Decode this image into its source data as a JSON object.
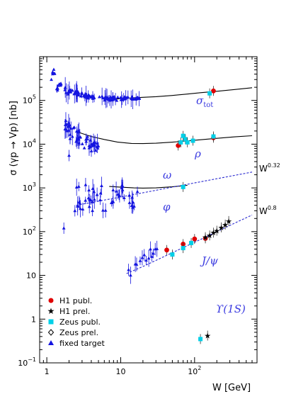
{
  "chart_data": {
    "type": "scatter",
    "ylabel": "σ (γp → Vp)  [nb]",
    "xlabel": "W  [GeV]",
    "x_scale": "log",
    "y_scale": "log",
    "xlim": [
      0.8,
      700
    ],
    "ylim": [
      0.1,
      1000000
    ],
    "x_ticks": [
      {
        "value": 1,
        "label": "1"
      },
      {
        "value": 10,
        "label": "10"
      },
      {
        "value": 100,
        "label": "10",
        "sup": "2"
      }
    ],
    "y_ticks": [
      {
        "value": 0.1,
        "label": "10",
        "sup": "−1"
      },
      {
        "value": 1,
        "label": "1"
      },
      {
        "value": 10,
        "label": "10"
      },
      {
        "value": 100,
        "label": "10",
        "sup": "2"
      },
      {
        "value": 1000,
        "label": "10",
        "sup": "3"
      },
      {
        "value": 10000,
        "label": "10",
        "sup": "4"
      },
      {
        "value": 100000,
        "label": "10",
        "sup": "5"
      }
    ],
    "curves": [
      {
        "name": "σ_tot",
        "style": "solid",
        "x": [
          7,
          10,
          15,
          20,
          30,
          50,
          80,
          120,
          200,
          350,
          600
        ],
        "y": [
          105000,
          110000,
          115000,
          118000,
          122000,
          130000,
          140000,
          150000,
          162000,
          178000,
          195000
        ]
      },
      {
        "name": "ρ",
        "style": "solid",
        "x": [
          2.5,
          3,
          4,
          6,
          9,
          14,
          20,
          30,
          50,
          80,
          120,
          200,
          350,
          600
        ],
        "y": [
          19500,
          17500,
          15000,
          12800,
          11200,
          10400,
          10300,
          10500,
          11100,
          11900,
          12600,
          13600,
          14700,
          15600
        ]
      },
      {
        "name": "ω",
        "style": "solid",
        "x": [
          7,
          10,
          15,
          20,
          30,
          50,
          80
        ],
        "y": [
          1080,
          1040,
          1000,
          990,
          1000,
          1060,
          1150
        ]
      },
      {
        "name": "W^0.32",
        "style": "dotted",
        "x": [
          2.5,
          10,
          100,
          600
        ],
        "y": [
          400,
          620,
          1300,
          2300
        ]
      },
      {
        "name": "W^0.8",
        "style": "dotted",
        "x": [
          12,
          20,
          30,
          50,
          80,
          120,
          200,
          400,
          600
        ],
        "y": [
          11,
          16,
          22,
          33,
          48,
          66,
          100,
          175,
          240
        ]
      }
    ],
    "series": [
      {
        "name": "H1 publ.",
        "marker": "circle",
        "color": "#e00000",
        "points": [
          [
            180,
            165000
          ],
          [
            60,
            9300
          ],
          [
            180,
            14000
          ],
          [
            42,
            38
          ],
          [
            70,
            52
          ],
          [
            100,
            68
          ],
          [
            140,
            70
          ]
        ]
      },
      {
        "name": "H1 prel.",
        "marker": "star",
        "color": "#000000",
        "points": [
          [
            140,
            75
          ],
          [
            160,
            82
          ],
          [
            180,
            95
          ],
          [
            200,
            105
          ],
          [
            230,
            125
          ],
          [
            260,
            145
          ],
          [
            290,
            175
          ],
          [
            150,
            0.42
          ]
        ]
      },
      {
        "name": "Zeus publ.",
        "marker": "square",
        "color": "#00d0e8",
        "points": [
          [
            160,
            145000
          ],
          [
            65,
            11000
          ],
          [
            75,
            13000
          ],
          [
            80,
            11000
          ],
          [
            95,
            12000
          ],
          [
            70,
            15500
          ],
          [
            180,
            15000
          ],
          [
            70,
            1050
          ],
          [
            50,
            30
          ],
          [
            70,
            42
          ],
          [
            90,
            55
          ],
          [
            120,
            0.35
          ]
        ]
      },
      {
        "name": "Zeus prel.",
        "marker": "diamond",
        "color": "#000000",
        "points": []
      },
      {
        "name": "fixed target",
        "marker": "triangle",
        "color": "#1414e0",
        "points": []
      }
    ],
    "labels": {
      "sigma_tot": {
        "base": "σ",
        "sub": "tot"
      },
      "rho": "ρ",
      "omega": "ω",
      "phi": "φ",
      "jpsi": "J/ψ",
      "upsilon": "ϒ(1S)",
      "w032": {
        "base": "W",
        "sup": "0.32"
      },
      "w08": {
        "base": "W",
        "sup": "0.8"
      }
    },
    "legend_position": "bottom-left",
    "colors": {
      "curve_labels": "#3a3ae0",
      "fixed_target": "#1414e0"
    }
  }
}
